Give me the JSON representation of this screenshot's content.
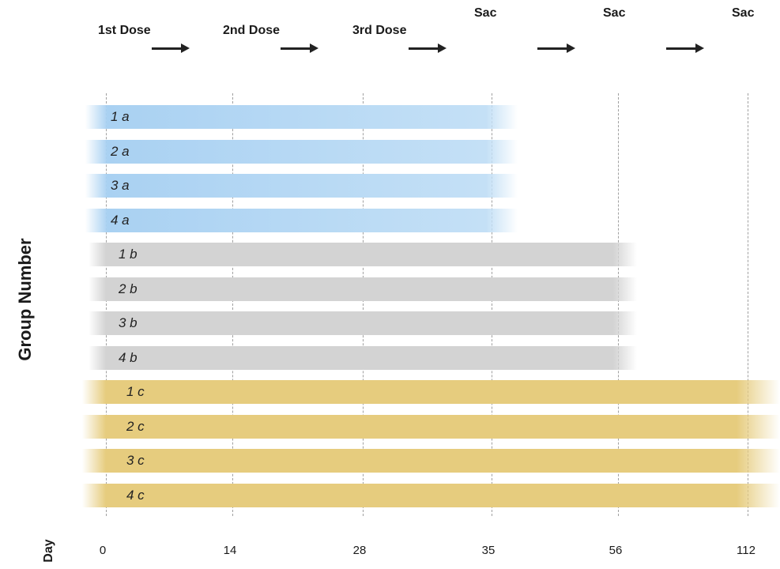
{
  "header": {
    "doses": [
      "1st Dose",
      "2nd Dose",
      "3rd Dose"
    ],
    "sac_label": "Sac"
  },
  "axis": {
    "y_title": "Group Number",
    "x_title": "Day",
    "ticks": [
      "0",
      "14",
      "28",
      "35",
      "56",
      "112"
    ]
  },
  "groups": [
    {
      "label": "1 a",
      "series": "a",
      "end_day": "35"
    },
    {
      "label": "2 a",
      "series": "a",
      "end_day": "35"
    },
    {
      "label": "3 a",
      "series": "a",
      "end_day": "35"
    },
    {
      "label": "4 a",
      "series": "a",
      "end_day": "35"
    },
    {
      "label": "1 b",
      "series": "b",
      "end_day": "56"
    },
    {
      "label": "2 b",
      "series": "b",
      "end_day": "56"
    },
    {
      "label": "3 b",
      "series": "b",
      "end_day": "56"
    },
    {
      "label": "4 b",
      "series": "b",
      "end_day": "56"
    },
    {
      "label": "1 c",
      "series": "c",
      "end_day": "112"
    },
    {
      "label": "2 c",
      "series": "c",
      "end_day": "112"
    },
    {
      "label": "3 c",
      "series": "c",
      "end_day": "112"
    },
    {
      "label": "4 c",
      "series": "c",
      "end_day": "112"
    }
  ],
  "colors": {
    "a": "#a9d1f2",
    "b": "#d3d3d3",
    "c": "#e6cc7e"
  }
}
